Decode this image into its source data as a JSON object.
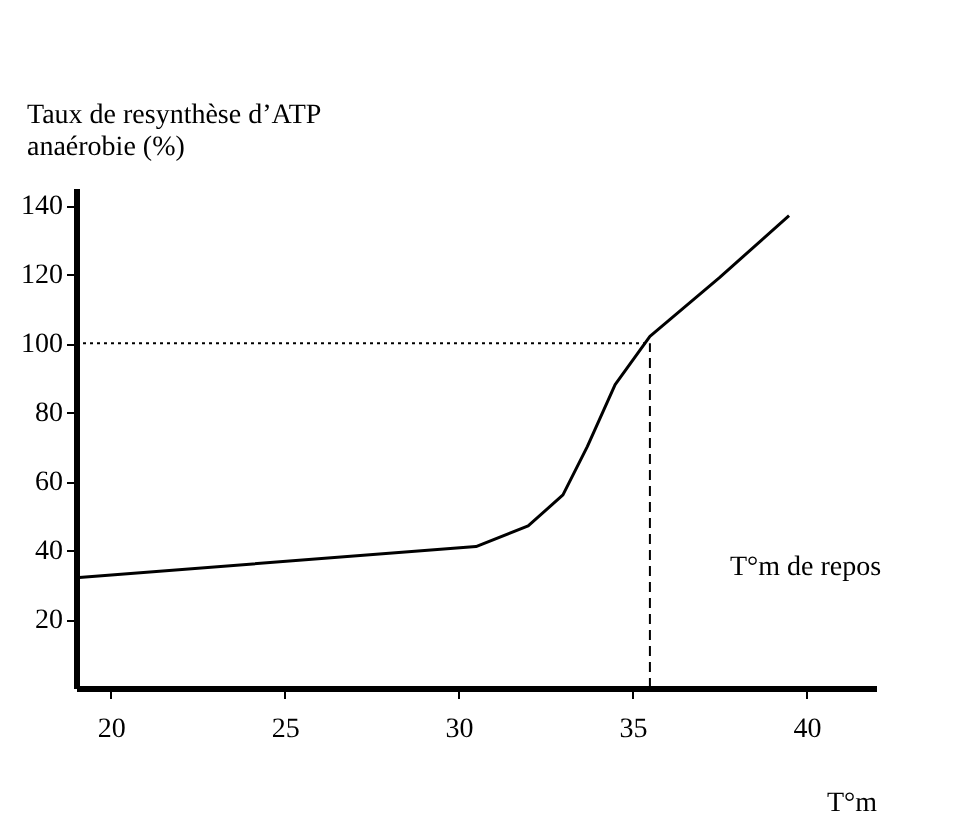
{
  "chart_data": {
    "type": "line",
    "ylabel": "Taux de resynthèse d’ATP\nanaérobie (%)",
    "xlabel": "T°m",
    "x": [
      19,
      30.5,
      32,
      33,
      33.7,
      34.5,
      35.5,
      37.5,
      39.5
    ],
    "series": [
      {
        "color": "#000000",
        "values": [
          32,
          41,
          47,
          56,
          70,
          88,
          102,
          119,
          137
        ]
      }
    ],
    "xlim": [
      19,
      42
    ],
    "xticks": [
      20,
      25,
      30,
      35,
      40
    ],
    "ylim": [
      0,
      145
    ],
    "yticks": [
      20,
      40,
      60,
      80,
      100,
      120,
      140
    ],
    "grid": false,
    "marker": "none",
    "line_style": "solid",
    "ref_lines": [
      {
        "axis": "y",
        "value": 100,
        "line_style": "dotted"
      },
      {
        "axis": "x",
        "value": 35.5,
        "line_style": "dashed"
      }
    ],
    "annotations": [
      {
        "text": "T°m de repos",
        "x": 35.5,
        "y": 35
      }
    ]
  }
}
